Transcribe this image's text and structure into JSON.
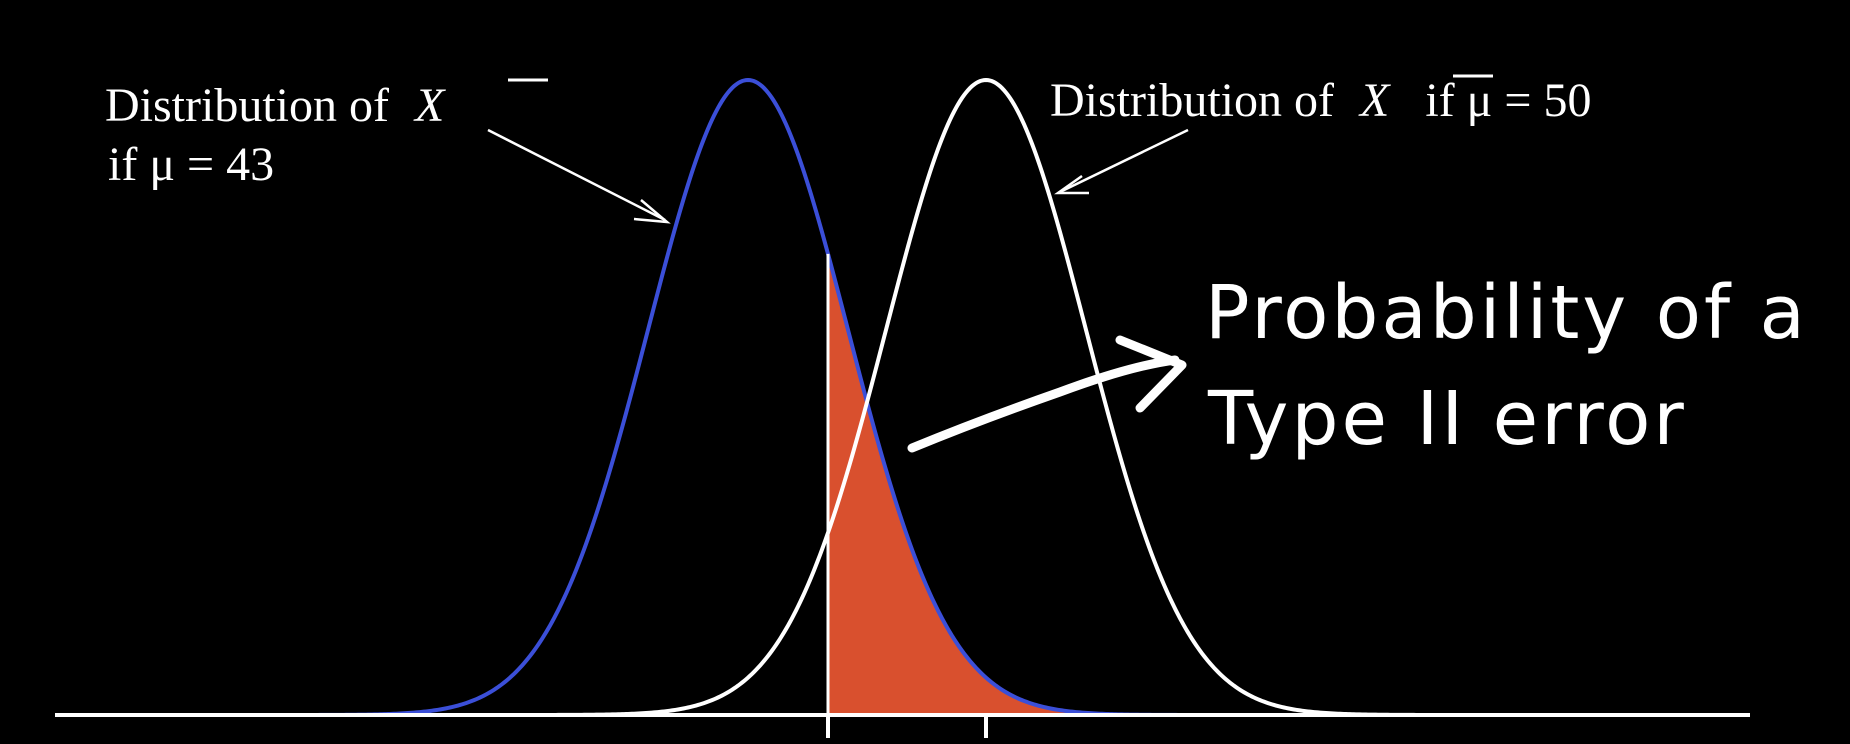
{
  "labels": {
    "left": {
      "prefix": "Distribution of",
      "symbol": "X",
      "line2": "if μ = 43"
    },
    "right": {
      "prefix": "Distribution of",
      "symbol": "X",
      "condition": "if μ = 50"
    },
    "annotation": {
      "line1": "Probability of a",
      "line2": "Type II error"
    }
  },
  "colors": {
    "background": "#000000",
    "left_curve": "#3b4fd8",
    "right_curve": "#ffffff",
    "shaded_region": "#d9502e",
    "axis": "#ffffff"
  }
}
